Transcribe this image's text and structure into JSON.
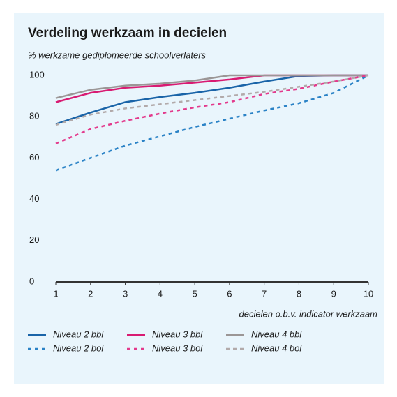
{
  "chart_data": {
    "type": "line",
    "title": "Verdeling werkzaam in decielen",
    "subtitle": "% werkzame gediplomeerde schoolverlaters",
    "x_label": "decielen o.b.v. indicator werkzaam",
    "x": [
      1,
      2,
      3,
      4,
      5,
      6,
      7,
      8,
      9,
      10
    ],
    "xlim": [
      1,
      10
    ],
    "xticks": [
      1,
      2,
      3,
      4,
      5,
      6,
      7,
      8,
      9,
      10
    ],
    "ylim": [
      0,
      100
    ],
    "yticks": [
      0,
      20,
      40,
      60,
      80,
      100
    ],
    "grid": false,
    "legend": "bottom",
    "series": [
      {
        "name": "Niveau 2 bbl",
        "color": "#1a64a8",
        "style": "solid",
        "values": [
          76.4,
          82,
          87,
          89.5,
          91.5,
          94,
          97,
          99.7,
          100,
          100
        ]
      },
      {
        "name": "Niveau 3 bbl",
        "color": "#d81b72",
        "style": "solid",
        "values": [
          87,
          91.5,
          94,
          95,
          96.5,
          98,
          100,
          100,
          100,
          100
        ]
      },
      {
        "name": "Niveau 4 bbl",
        "color": "#9b9696",
        "style": "solid",
        "values": [
          89,
          93,
          95,
          96,
          97.5,
          100,
          100,
          100,
          100,
          100
        ]
      },
      {
        "name": "Niveau 2 bol",
        "color": "#2a82c6",
        "style": "dashed",
        "values": [
          54,
          60,
          66,
          70.5,
          75,
          79,
          83,
          86.5,
          91.5,
          100
        ]
      },
      {
        "name": "Niveau 3 bol",
        "color": "#e33a8c",
        "style": "dashed",
        "values": [
          67,
          74,
          78,
          81.5,
          84.5,
          87,
          91,
          93.5,
          97,
          100
        ]
      },
      {
        "name": "Niveau 4 bol",
        "color": "#b2aaaa",
        "style": "dashed",
        "values": [
          76,
          81,
          84,
          86,
          88,
          90,
          92,
          94.5,
          97,
          100
        ]
      }
    ]
  }
}
